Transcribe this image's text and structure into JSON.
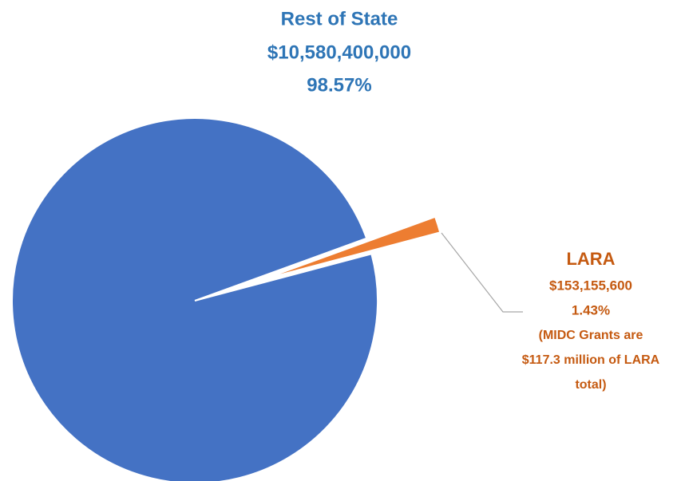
{
  "chart_data": {
    "type": "pie",
    "categories": [
      "Rest of State",
      "LARA"
    ],
    "values": [
      10580400000,
      153155600
    ],
    "value_labels": [
      "$10,580,400,000",
      "$153,155,600"
    ],
    "percent_labels": [
      "98.57%",
      "1.43%"
    ],
    "colors": [
      "#4472c4",
      "#ed7d31"
    ],
    "label_colors": [
      "#2e75b6",
      "#c55a11"
    ],
    "annotation": [
      "(MIDC Grants are",
      "$117.3 million of LARA",
      "total)"
    ]
  }
}
